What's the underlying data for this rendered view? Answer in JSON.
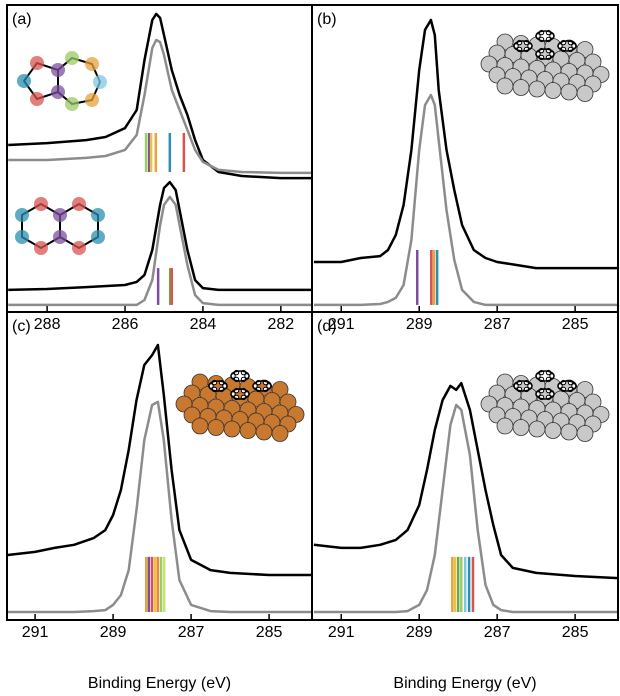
{
  "chart_data": [
    {
      "type": "line",
      "label": "(a)",
      "xlim": [
        289.03,
        281.2
      ],
      "ylim": [
        0,
        100
      ],
      "xticks": [
        288,
        286,
        284,
        282
      ],
      "series": [
        {
          "color": "#000000",
          "x": [
            289,
            288,
            287,
            286.5,
            286,
            285.7,
            285.5,
            285.3,
            285.2,
            285.1,
            285.0,
            284.8,
            284.6,
            284.4,
            284.2,
            284.0,
            283.6,
            283,
            282,
            281.2
          ],
          "values": [
            54.4,
            55.0,
            56.0,
            57.0,
            59.9,
            65.8,
            82.1,
            95.1,
            97.1,
            95.8,
            90.2,
            78.8,
            70.7,
            64.2,
            56.0,
            49.5,
            45.6,
            44.3,
            43.6,
            43.6
          ]
        },
        {
          "color": "#8c8c8c",
          "x": [
            289,
            288,
            287,
            286.5,
            286,
            285.7,
            285.5,
            285.3,
            285.2,
            285.1,
            285.0,
            284.8,
            284.6,
            284.4,
            284.2,
            284.0,
            283.6,
            283,
            282,
            281.2
          ],
          "values": [
            49.5,
            49.5,
            50.2,
            50.8,
            52.8,
            57.7,
            70.7,
            86.0,
            88.6,
            87.9,
            83.7,
            72.3,
            65.8,
            59.3,
            52.8,
            48.9,
            46.3,
            45.6,
            45.3,
            45.3
          ]
        },
        {
          "color": "#000000",
          "x": [
            289,
            288,
            287,
            286,
            285.7,
            285.5,
            285.3,
            285.1,
            285.0,
            284.85,
            284.7,
            284.6,
            284.4,
            284.2,
            284.0,
            283.6,
            283,
            282,
            281.2
          ],
          "values": [
            7.2,
            7.5,
            8.1,
            8.8,
            9.8,
            12.1,
            20.2,
            34.9,
            40.4,
            42.3,
            39.7,
            33.2,
            20.2,
            10.4,
            7.8,
            7.2,
            7.2,
            7.2,
            7.2
          ]
        },
        {
          "color": "#8c8c8c",
          "x": [
            289,
            288,
            287,
            286,
            285.7,
            285.5,
            285.3,
            285.1,
            285.0,
            284.85,
            284.7,
            284.6,
            284.4,
            284.2,
            284.0,
            283.6,
            283,
            282,
            281.2
          ],
          "values": [
            2.3,
            2.3,
            2.3,
            2.3,
            2.3,
            3.9,
            10.4,
            28.3,
            34.9,
            37.5,
            34.9,
            28.3,
            15.3,
            5.5,
            2.9,
            2.3,
            2.3,
            2.3,
            2.3
          ]
        }
      ],
      "sticks": [
        {
          "x": [
            285.46,
            285.38,
            285.33,
            285.21,
            284.85,
            284.49
          ],
          "colors": [
            "#9ccc65",
            "#7b4f9e",
            "#e8c547",
            "#e8a33d",
            "#2a8fb0",
            "#d9534f"
          ],
          "y0": 45.6,
          "y1": 58.3
        },
        {
          "x": [
            285.15,
            284.84,
            284.8
          ],
          "colors": [
            "#7b4f9e",
            "#6aa84f",
            "#d9534f"
          ],
          "y0": 2.3,
          "y1": 14.3
        }
      ]
    },
    {
      "type": "line",
      "label": "(b)",
      "xlim": [
        291.75,
        283.9
      ],
      "ylim": [
        0,
        100
      ],
      "xticks": [
        291,
        289,
        287,
        285
      ],
      "series": [
        {
          "color": "#000000",
          "x": [
            291.7,
            291,
            290.5,
            290,
            289.8,
            289.6,
            289.4,
            289.2,
            289.0,
            288.85,
            288.7,
            288.6,
            288.5,
            288.3,
            288.1,
            287.9,
            287.6,
            287.3,
            287,
            286.5,
            286,
            285,
            284,
            283.9
          ],
          "values": [
            16.3,
            16.3,
            17.6,
            18.2,
            20.2,
            25.1,
            34.9,
            52.8,
            78.8,
            91.9,
            95.1,
            90.2,
            72.3,
            52.8,
            39.7,
            28.3,
            20.2,
            17.6,
            16.3,
            15.3,
            14.3,
            14.3,
            14.3,
            14.3
          ]
        },
        {
          "color": "#8c8c8c",
          "x": [
            291.7,
            291,
            290.5,
            290,
            289.8,
            289.6,
            289.4,
            289.2,
            289.0,
            288.85,
            288.7,
            288.6,
            288.5,
            288.3,
            288.1,
            287.9,
            287.6,
            287.3,
            287,
            286.5,
            286,
            285,
            284,
            283.9
          ],
          "values": [
            2.3,
            2.3,
            2.3,
            2.6,
            3.3,
            4.6,
            8.8,
            23.5,
            52.8,
            67.4,
            70.7,
            67.4,
            56.0,
            33.2,
            16.9,
            7.2,
            3.3,
            2.3,
            2.3,
            2.3,
            2.3,
            2.3,
            2.3,
            2.3
          ]
        }
      ],
      "sticks": [
        {
          "x": [
            289.05,
            288.69,
            288.62,
            288.54
          ],
          "colors": [
            "#7b4f9e",
            "#d9534f",
            "#e8a33d",
            "#2a8fb0"
          ],
          "y0": 2.3,
          "y1": 20.2
        }
      ]
    },
    {
      "type": "line",
      "label": "(c)",
      "xlim": [
        291.72,
        283.9
      ],
      "ylim": [
        0,
        100
      ],
      "xticks": [
        291,
        289,
        287,
        285
      ],
      "xlabel": "Binding Energy (eV)",
      "series": [
        {
          "color": "#000000",
          "x": [
            291.7,
            291,
            290.5,
            290,
            289.5,
            289.2,
            289.0,
            288.8,
            288.6,
            288.4,
            288.2,
            288.0,
            287.85,
            287.7,
            287.5,
            287.3,
            287.0,
            286.5,
            286,
            285,
            283.9
          ],
          "values": [
            21.1,
            22.1,
            23.4,
            24.4,
            26.6,
            29.2,
            34.1,
            42.2,
            55.2,
            71.4,
            82.8,
            86.0,
            89.3,
            73.1,
            48.7,
            29.2,
            19.5,
            16.2,
            15.3,
            14.6,
            14.6
          ]
        },
        {
          "color": "#8c8c8c",
          "x": [
            291.7,
            291,
            290.5,
            290,
            289.5,
            289.2,
            289.0,
            288.8,
            288.6,
            288.4,
            288.2,
            288.0,
            287.85,
            287.7,
            287.5,
            287.3,
            287.0,
            286.5,
            286,
            285,
            283.9
          ],
          "values": [
            2.6,
            2.6,
            2.6,
            2.6,
            2.9,
            3.2,
            4.9,
            8.1,
            16.2,
            35.7,
            58.4,
            69.8,
            70.8,
            58.4,
            32.5,
            13.0,
            4.9,
            2.9,
            2.6,
            2.6,
            2.6
          ]
        }
      ],
      "sticks": [
        {
          "x": [
            288.15,
            288.08,
            288.0,
            287.92,
            287.85,
            287.77,
            287.69
          ],
          "colors": [
            "#e8a33d",
            "#7b4f9e",
            "#d9534f",
            "#e8c547",
            "#e88a3d",
            "#9ccc65",
            "#c5e17a"
          ],
          "y0": 2.6,
          "y1": 20.5
        }
      ]
    },
    {
      "type": "line",
      "label": "(d)",
      "xlim": [
        291.75,
        283.9
      ],
      "ylim": [
        0,
        100
      ],
      "xticks": [
        291,
        289,
        287,
        285
      ],
      "xlabel": "Binding Energy (eV)",
      "series": [
        {
          "color": "#000000",
          "x": [
            291.7,
            291,
            290.5,
            290,
            289.6,
            289.3,
            289.0,
            288.8,
            288.6,
            288.4,
            288.2,
            288.05,
            287.92,
            287.7,
            287.5,
            287.3,
            287.1,
            286.9,
            286.6,
            286,
            285,
            283.9
          ],
          "values": [
            24.4,
            23.4,
            23.4,
            24.4,
            26.0,
            29.2,
            37.3,
            48.7,
            61.7,
            71.4,
            76.0,
            74.7,
            76.9,
            68.2,
            55.2,
            42.2,
            30.8,
            21.1,
            16.9,
            15.3,
            14.3,
            13.6
          ]
        },
        {
          "color": "#8c8c8c",
          "x": [
            291.7,
            291,
            290.5,
            290,
            289.6,
            289.3,
            289.0,
            288.8,
            288.6,
            288.4,
            288.2,
            288.05,
            287.92,
            287.7,
            287.5,
            287.3,
            287.1,
            286.9,
            286.6,
            286,
            285,
            283.9
          ],
          "values": [
            2.6,
            2.6,
            2.6,
            2.6,
            2.6,
            2.9,
            4.9,
            9.7,
            21.1,
            42.2,
            63.3,
            69.8,
            68.2,
            53.6,
            29.2,
            11.4,
            4.9,
            3.2,
            2.6,
            2.6,
            2.6,
            2.6
          ]
        }
      ],
      "sticks": [
        {
          "x": [
            288.15,
            288.08,
            288.0,
            287.92,
            287.82,
            287.72,
            287.62
          ],
          "colors": [
            "#e8a33d",
            "#e8c547",
            "#6aa84f",
            "#9ccc65",
            "#7ec8e3",
            "#2a8fb0",
            "#d9534f"
          ],
          "y0": 2.6,
          "y1": 20.5
        }
      ]
    }
  ]
}
